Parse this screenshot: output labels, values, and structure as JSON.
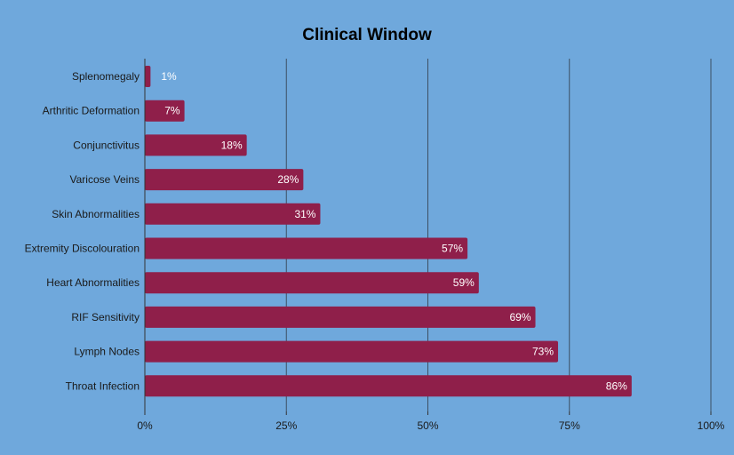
{
  "chart_data": {
    "type": "bar",
    "orientation": "horizontal",
    "title": "Clinical Window",
    "xlabel": "",
    "ylabel": "",
    "categories": [
      "Splenomegaly",
      "Arthritic Deformation",
      "Conjunctivitus",
      "Varicose Veins",
      "Skin Abnormalities",
      "Extremity Discolouration",
      "Heart Abnormalities",
      "RIF Sensitivity",
      "Lymph Nodes",
      "Throat Infection"
    ],
    "values": [
      1,
      7,
      18,
      28,
      31,
      57,
      59,
      69,
      73,
      86
    ],
    "value_labels": [
      "1%",
      "7%",
      "18%",
      "28%",
      "31%",
      "57%",
      "59%",
      "69%",
      "73%",
      "86%"
    ],
    "xlim": [
      0,
      100
    ],
    "x_ticks": [
      0,
      25,
      50,
      75,
      100
    ],
    "x_tick_labels": [
      "0%",
      "25%",
      "50%",
      "75%",
      "100%"
    ],
    "grid": "vertical",
    "legend": "none",
    "colors": {
      "background": "#6fa8dc",
      "bar": "#8f1f4a",
      "grid": "#3d4f63",
      "axis": "#333333",
      "title": "#000000",
      "label": "#1a1a1a",
      "value_label": "#ffffff"
    }
  }
}
